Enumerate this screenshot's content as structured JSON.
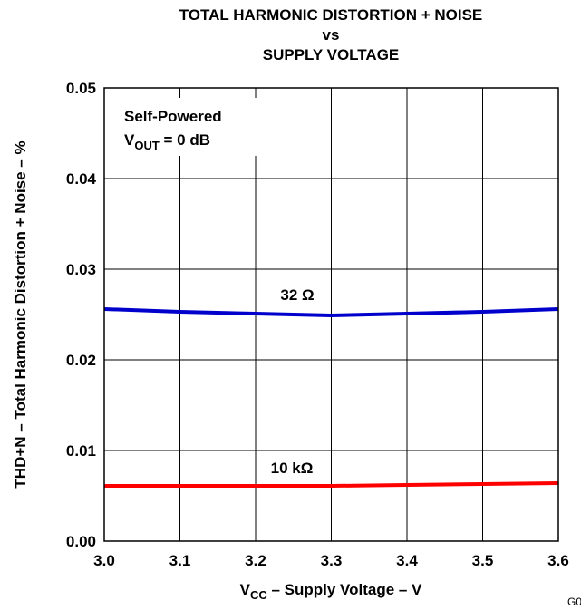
{
  "chart_data": {
    "type": "line",
    "title_lines": [
      "TOTAL HARMONIC DISTORTION + NOISE",
      "vs",
      "SUPPLY VOLTAGE"
    ],
    "xlabel": {
      "main": "V",
      "sub": "CC",
      "rest": " – Supply Voltage – V"
    },
    "ylabel": "THD+N – Total Harmonic Distortion + Noise – %",
    "xlim": [
      3.0,
      3.6
    ],
    "ylim": [
      0.0,
      0.05
    ],
    "x_ticks": [
      "3.0",
      "3.1",
      "3.2",
      "3.3",
      "3.4",
      "3.5",
      "3.6"
    ],
    "y_ticks": [
      "0.00",
      "0.01",
      "0.02",
      "0.03",
      "0.04",
      "0.05"
    ],
    "grid": true,
    "annotation": {
      "line1": "Self-Powered",
      "line2_main": "V",
      "line2_sub": "OUT",
      "line2_rest": " = 0 dB"
    },
    "series": [
      {
        "name": "32 Ω",
        "color": "#0000cc",
        "x": [
          3.0,
          3.1,
          3.2,
          3.3,
          3.4,
          3.5,
          3.6
        ],
        "y": [
          0.0256,
          0.0253,
          0.0251,
          0.0249,
          0.0251,
          0.0253,
          0.0256
        ]
      },
      {
        "name": "10 kΩ",
        "color": "#ff0000",
        "x": [
          3.0,
          3.1,
          3.2,
          3.3,
          3.4,
          3.5,
          3.6
        ],
        "y": [
          0.0061,
          0.0061,
          0.0061,
          0.0061,
          0.0062,
          0.0063,
          0.0064
        ]
      }
    ],
    "figure_id": "G0"
  }
}
